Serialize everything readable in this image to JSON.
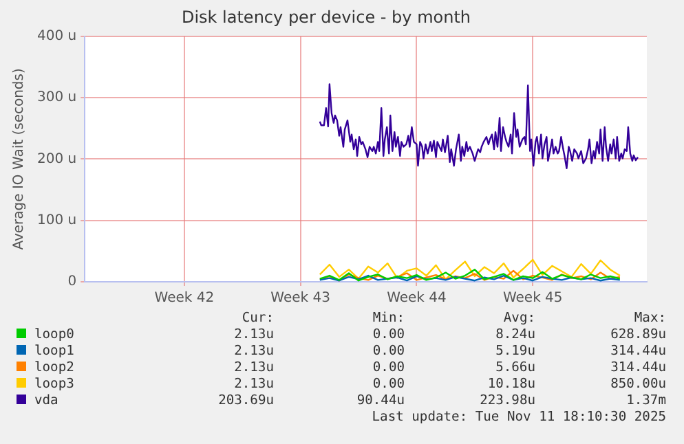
{
  "chart_data": {
    "type": "line",
    "title": "Disk latency per device - by month",
    "ylabel": "Average IO Wait (seconds)",
    "x": [
      "2025-10-23T14:00",
      "2025-10-24T04:00",
      "2025-10-24T18:00",
      "2025-10-25T08:00",
      "2025-10-25T22:00",
      "2025-10-26T12:00",
      "2025-10-27T02:00",
      "2025-10-27T16:00",
      "2025-10-28T06:00",
      "2025-10-28T20:00",
      "2025-10-29T10:00",
      "2025-10-30T00:00",
      "2025-10-30T14:00",
      "2025-10-31T04:00",
      "2025-10-31T18:00",
      "2025-11-01T08:00",
      "2025-11-01T22:00",
      "2025-11-02T12:00",
      "2025-11-03T02:00",
      "2025-11-03T16:00",
      "2025-11-04T06:00",
      "2025-11-04T20:00",
      "2025-11-05T10:00",
      "2025-11-06T00:00",
      "2025-11-06T14:00",
      "2025-11-07T04:00",
      "2025-11-07T18:00",
      "2025-11-08T08:00",
      "2025-11-08T22:00",
      "2025-11-09T12:00",
      "2025-11-10T02:00",
      "2025-11-10T16:00"
    ],
    "series": [
      {
        "name": "loop0",
        "color": "#00cc00",
        "values": [
          5,
          10,
          3,
          14,
          2,
          8,
          12,
          4,
          9,
          6,
          11,
          3,
          7,
          15,
          5,
          10,
          20,
          4,
          8,
          13,
          3,
          9,
          6,
          16,
          5,
          11,
          7,
          4,
          12,
          6,
          9,
          5
        ]
      },
      {
        "name": "loop1",
        "color": "#0066b3",
        "values": [
          3,
          6,
          2,
          8,
          4,
          10,
          3,
          5,
          7,
          2,
          9,
          4,
          6,
          3,
          8,
          5,
          2,
          7,
          4,
          10,
          3,
          6,
          2,
          8,
          5,
          3,
          7,
          4,
          6,
          2,
          5,
          3
        ]
      },
      {
        "name": "loop2",
        "color": "#ff8000",
        "values": [
          4,
          9,
          2,
          12,
          6,
          3,
          10,
          5,
          8,
          14,
          3,
          7,
          11,
          4,
          9,
          6,
          13,
          3,
          8,
          5,
          18,
          4,
          10,
          7,
          3,
          12,
          6,
          9,
          4,
          15,
          5,
          8
        ]
      },
      {
        "name": "loop3",
        "color": "#ffcc00",
        "values": [
          12,
          28,
          8,
          20,
          5,
          25,
          15,
          30,
          6,
          18,
          22,
          10,
          27,
          4,
          19,
          33,
          9,
          24,
          14,
          30,
          7,
          21,
          36,
          11,
          26,
          17,
          8,
          29,
          13,
          35,
          20,
          10
        ]
      },
      {
        "name": "vda",
        "color": "#330099",
        "x": [
          "2025-10-23T14:00",
          "2025-10-23T16:00",
          "2025-10-23T20:00",
          "2025-10-23T23:00",
          "2025-10-24T02:00",
          "2025-10-24T04:00",
          "2025-10-24T07:00",
          "2025-10-24T10:00",
          "2025-10-24T12:00",
          "2025-10-24T15:00",
          "2025-10-24T18:00",
          "2025-10-24T20:00",
          "2025-10-25T00:00",
          "2025-10-25T02:00",
          "2025-10-25T06:00",
          "2025-10-25T10:00",
          "2025-10-25T12:00",
          "2025-10-25T15:00",
          "2025-10-25T18:00",
          "2025-10-25T20:00",
          "2025-10-25T23:00",
          "2025-10-26T02:00",
          "2025-10-26T04:00",
          "2025-10-26T08:00",
          "2025-10-26T11:00",
          "2025-10-26T14:00",
          "2025-10-26T18:00",
          "2025-10-26T20:00",
          "2025-10-26T23:00",
          "2025-10-27T02:00",
          "2025-10-27T04:00",
          "2025-10-27T07:00",
          "2025-10-27T10:00",
          "2025-10-27T12:00",
          "2025-10-27T15:00",
          "2025-10-27T18:00",
          "2025-10-27T20:00",
          "2025-10-27T23:00",
          "2025-10-28T02:00",
          "2025-10-28T04:00",
          "2025-10-28T07:00",
          "2025-10-28T10:00",
          "2025-10-28T12:00",
          "2025-10-28T15:00",
          "2025-10-28T19:00",
          "2025-10-28T22:00",
          "2025-10-29T00:00",
          "2025-10-29T03:00",
          "2025-10-29T06:00",
          "2025-10-29T10:00",
          "2025-10-29T12:00",
          "2025-10-29T15:00",
          "2025-10-29T18:00",
          "2025-10-29T20:00",
          "2025-10-29T23:00",
          "2025-10-30T02:00",
          "2025-10-30T06:00",
          "2025-10-30T08:00",
          "2025-10-30T11:00",
          "2025-10-30T14:00",
          "2025-10-30T16:00",
          "2025-10-30T19:00",
          "2025-10-30T22:00",
          "2025-10-31T00:00",
          "2025-10-31T03:00",
          "2025-10-31T07:00",
          "2025-10-31T10:00",
          "2025-10-31T12:00",
          "2025-10-31T16:00",
          "2025-10-31T19:00",
          "2025-10-31T23:00",
          "2025-11-01T02:00",
          "2025-11-01T04:00",
          "2025-11-01T07:00",
          "2025-11-01T10:00",
          "2025-11-01T12:00",
          "2025-11-01T15:00",
          "2025-11-01T19:00",
          "2025-11-01T22:00",
          "2025-11-02T00:00",
          "2025-11-02T03:00",
          "2025-11-02T06:00",
          "2025-11-02T08:00",
          "2025-11-02T11:00",
          "2025-11-02T15:00",
          "2025-11-02T18:00",
          "2025-11-02T20:00",
          "2025-11-02T23:00",
          "2025-11-03T02:00",
          "2025-11-03T04:00",
          "2025-11-03T07:00",
          "2025-11-03T10:00",
          "2025-11-03T12:00",
          "2025-11-03T15:00",
          "2025-11-03T18:00",
          "2025-11-03T20:00",
          "2025-11-03T23:00",
          "2025-11-04T02:00",
          "2025-11-04T04:00",
          "2025-11-04T07:00",
          "2025-11-04T10:00",
          "2025-11-04T12:00",
          "2025-11-04T15:00",
          "2025-11-04T19:00",
          "2025-11-04T22:00",
          "2025-11-05T00:00",
          "2025-11-05T03:00",
          "2025-11-05T06:00",
          "2025-11-05T08:00",
          "2025-11-05T11:00",
          "2025-11-05T14:00",
          "2025-11-05T16:00",
          "2025-11-05T19:00",
          "2025-11-05T22:00",
          "2025-11-06T00:00",
          "2025-11-06T03:00",
          "2025-11-06T06:00",
          "2025-11-06T08:00",
          "2025-11-06T11:00",
          "2025-11-06T14:00",
          "2025-11-06T16:00",
          "2025-11-06T19:00",
          "2025-11-06T22:00",
          "2025-11-07T00:00",
          "2025-11-07T03:00",
          "2025-11-07T06:00",
          "2025-11-07T08:00",
          "2025-11-07T11:00",
          "2025-11-07T14:00",
          "2025-11-07T16:00",
          "2025-11-07T19:00",
          "2025-11-07T22:00",
          "2025-11-08T02:00",
          "2025-11-08T04:00",
          "2025-11-08T08:00",
          "2025-11-08T11:00",
          "2025-11-08T15:00",
          "2025-11-08T18:00",
          "2025-11-08T20:00",
          "2025-11-08T23:00",
          "2025-11-09T02:00",
          "2025-11-09T04:00",
          "2025-11-09T07:00",
          "2025-11-09T10:00",
          "2025-11-09T12:00",
          "2025-11-09T15:00",
          "2025-11-09T18:00",
          "2025-11-09T20:00",
          "2025-11-09T23:00",
          "2025-11-10T02:00",
          "2025-11-10T04:00",
          "2025-11-10T07:00",
          "2025-11-10T10:00",
          "2025-11-10T12:00",
          "2025-11-10T15:00",
          "2025-11-10T18:00",
          "2025-11-10T20:00",
          "2025-11-10T23:00",
          "2025-11-11T02:00",
          "2025-11-11T04:00",
          "2025-11-11T07:00",
          "2025-11-11T10:00",
          "2025-11-11T12:00",
          "2025-11-11T15:00",
          "2025-11-11T18:00"
        ],
        "values": [
          261,
          255,
          255,
          283,
          253,
          322,
          275,
          259,
          271,
          263,
          238,
          252,
          220,
          248,
          263,
          228,
          240,
          216,
          232,
          205,
          236,
          224,
          228,
          216,
          203,
          220,
          213,
          220,
          209,
          228,
          213,
          283,
          205,
          232,
          252,
          209,
          271,
          213,
          244,
          220,
          236,
          205,
          228,
          220,
          224,
          238,
          220,
          252,
          228,
          224,
          189,
          228,
          220,
          201,
          224,
          209,
          228,
          213,
          230,
          203,
          228,
          220,
          213,
          232,
          211,
          238,
          195,
          216,
          189,
          216,
          240,
          197,
          220,
          205,
          228,
          213,
          220,
          209,
          197,
          205,
          216,
          211,
          220,
          228,
          236,
          224,
          232,
          240,
          216,
          244,
          220,
          267,
          213,
          252,
          236,
          228,
          220,
          240,
          209,
          275,
          236,
          248,
          220,
          232,
          236,
          224,
          320,
          213,
          232,
          189,
          228,
          236,
          209,
          240,
          201,
          224,
          236,
          197,
          213,
          232,
          209,
          220,
          209,
          213,
          236,
          216,
          205,
          185,
          220,
          213,
          197,
          216,
          209,
          201,
          213,
          193,
          201,
          216,
          232,
          193,
          213,
          201,
          228,
          209,
          248,
          197,
          252,
          220,
          197,
          224,
          209,
          232,
          201,
          236,
          197,
          209,
          201,
          216,
          213,
          252,
          209,
          197,
          206,
          198,
          203
        ]
      }
    ],
    "xlim": [
      "2025-10-09T10:00",
      "2025-11-12T07:00"
    ],
    "xticks": [
      {
        "value": "2025-10-15T10:00",
        "label": "Week 42"
      },
      {
        "value": "2025-10-22T10:00",
        "label": "Week 43"
      },
      {
        "value": "2025-10-29T10:00",
        "label": "Week 44"
      },
      {
        "value": "2025-11-05T10:00",
        "label": "Week 45"
      }
    ],
    "ylim": [
      0,
      400
    ],
    "yticks": [
      {
        "value": 0,
        "label": "0"
      },
      {
        "value": 100,
        "label": "100 u"
      },
      {
        "value": 200,
        "label": "200 u"
      },
      {
        "value": 300,
        "label": "300 u"
      },
      {
        "value": 400,
        "label": "400 u"
      }
    ],
    "grid": true,
    "legend": "bottom",
    "marker": "none",
    "line_style": "solid",
    "annotations": [
      "Cur:",
      "Min:",
      "Avg:",
      "Max:",
      "2.13u",
      "0.00",
      "8.24u",
      "628.89u",
      "2.13u",
      "0.00",
      "5.19u",
      "314.44u",
      "2.13u",
      "0.00",
      "5.66u",
      "314.44u",
      "2.13u",
      "0.00",
      "10.18u",
      "850.00u",
      "203.69u",
      "90.44u",
      "223.98u",
      "1.37m",
      "Last update: Tue Nov 11 18:10:30 2025"
    ]
  }
}
